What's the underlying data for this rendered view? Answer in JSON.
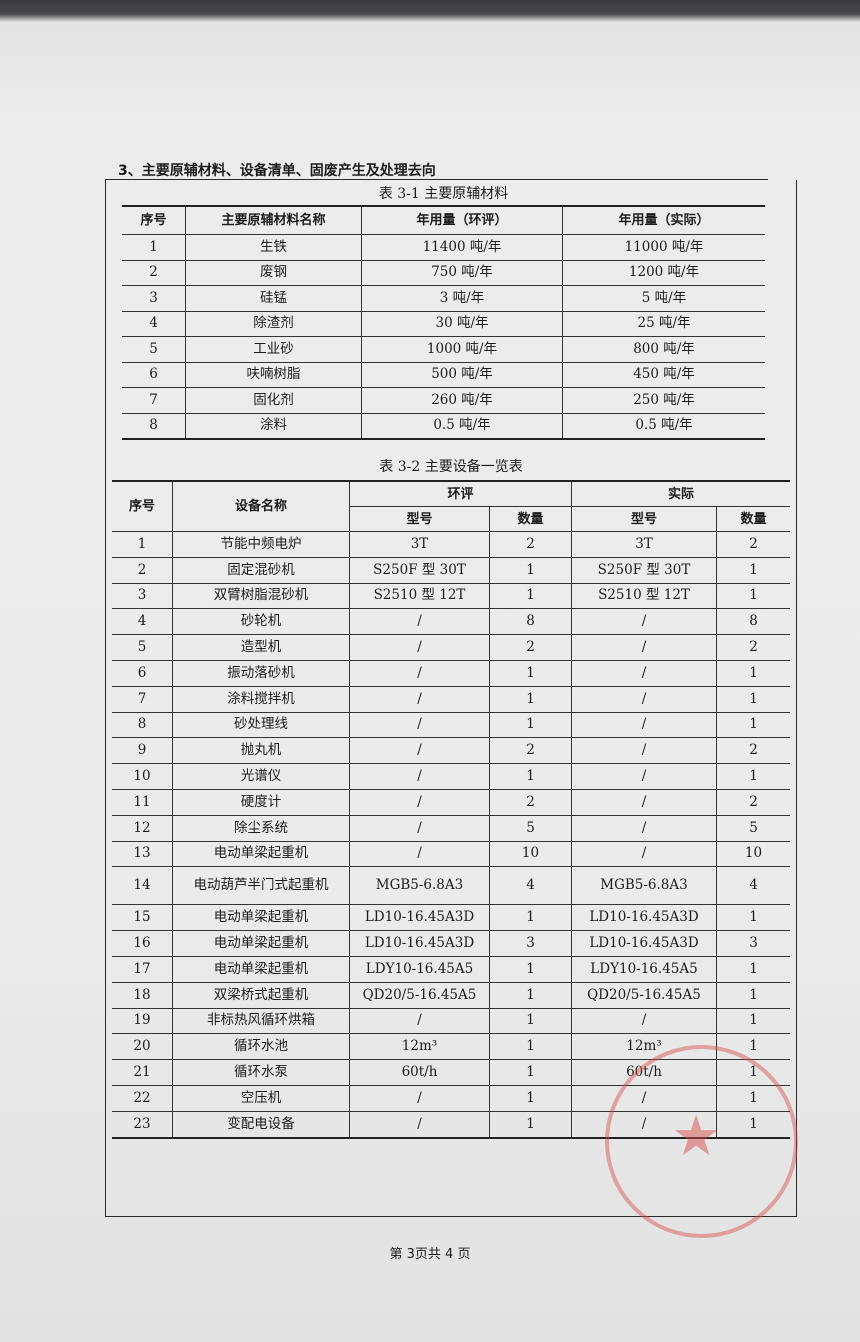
{
  "section_title": "3、主要原辅材料、设备清单、固废产生及处理去向",
  "table1": {
    "caption": "表 3-1 主要原辅材料",
    "headers": [
      "序号",
      "主要原辅材料名称",
      "年用量（环评）",
      "年用量（实际）"
    ],
    "rows": [
      [
        "1",
        "生铁",
        "11400 吨/年",
        "11000 吨/年"
      ],
      [
        "2",
        "废钢",
        "750 吨/年",
        "1200 吨/年"
      ],
      [
        "3",
        "硅锰",
        "3 吨/年",
        "5 吨/年"
      ],
      [
        "4",
        "除渣剂",
        "30 吨/年",
        "25 吨/年"
      ],
      [
        "5",
        "工业砂",
        "1000 吨/年",
        "800 吨/年"
      ],
      [
        "6",
        "呋喃树脂",
        "500 吨/年",
        "450 吨/年"
      ],
      [
        "7",
        "固化剂",
        "260 吨/年",
        "250 吨/年"
      ],
      [
        "8",
        "涂料",
        "0.5 吨/年",
        "0.5 吨/年"
      ]
    ]
  },
  "table2": {
    "caption": "表 3-2 主要设备一览表",
    "headers": {
      "index": "序号",
      "name": "设备名称",
      "group_eia": "环评",
      "group_actual": "实际",
      "model": "型号",
      "quantity": "数量"
    },
    "rows": [
      [
        "1",
        "节能中频电炉",
        "3T",
        "2",
        "3T",
        "2"
      ],
      [
        "2",
        "固定混砂机",
        "S250F 型 30T",
        "1",
        "S250F 型 30T",
        "1"
      ],
      [
        "3",
        "双臂树脂混砂机",
        "S2510 型 12T",
        "1",
        "S2510 型 12T",
        "1"
      ],
      [
        "4",
        "砂轮机",
        "/",
        "8",
        "/",
        "8"
      ],
      [
        "5",
        "造型机",
        "/",
        "2",
        "/",
        "2"
      ],
      [
        "6",
        "振动落砂机",
        "/",
        "1",
        "/",
        "1"
      ],
      [
        "7",
        "涂料搅拌机",
        "/",
        "1",
        "/",
        "1"
      ],
      [
        "8",
        "砂处理线",
        "/",
        "1",
        "/",
        "1"
      ],
      [
        "9",
        "抛丸机",
        "/",
        "2",
        "/",
        "2"
      ],
      [
        "10",
        "光谱仪",
        "/",
        "1",
        "/",
        "1"
      ],
      [
        "11",
        "硬度计",
        "/",
        "2",
        "/",
        "2"
      ],
      [
        "12",
        "除尘系统",
        "/",
        "5",
        "/",
        "5"
      ],
      [
        "13",
        "电动单梁起重机",
        "/",
        "10",
        "/",
        "10"
      ],
      [
        "14",
        "电动葫芦半门式起重机",
        "MGB5-6.8A3",
        "4",
        "MGB5-6.8A3",
        "4"
      ],
      [
        "15",
        "电动单梁起重机",
        "LD10-16.45A3D",
        "1",
        "LD10-16.45A3D",
        "1"
      ],
      [
        "16",
        "电动单梁起重机",
        "LD10-16.45A3D",
        "3",
        "LD10-16.45A3D",
        "3"
      ],
      [
        "17",
        "电动单梁起重机",
        "LDY10-16.45A5",
        "1",
        "LDY10-16.45A5",
        "1"
      ],
      [
        "18",
        "双梁桥式起重机",
        "QD20/5-16.45A5",
        "1",
        "QD20/5-16.45A5",
        "1"
      ],
      [
        "19",
        "非标热风循环烘箱",
        "/",
        "1",
        "/",
        "1"
      ],
      [
        "20",
        "循环水池",
        "12m³",
        "1",
        "12m³",
        "1"
      ],
      [
        "21",
        "循环水泵",
        "60t/h",
        "1",
        "60t/h",
        "1"
      ],
      [
        "22",
        "空压机",
        "/",
        "1",
        "/",
        "1"
      ],
      [
        "23",
        "变配电设备",
        "/",
        "1",
        "/",
        "1"
      ]
    ]
  },
  "footer": "第 3页共 4 页",
  "stamp": {
    "color": "#d74646"
  }
}
